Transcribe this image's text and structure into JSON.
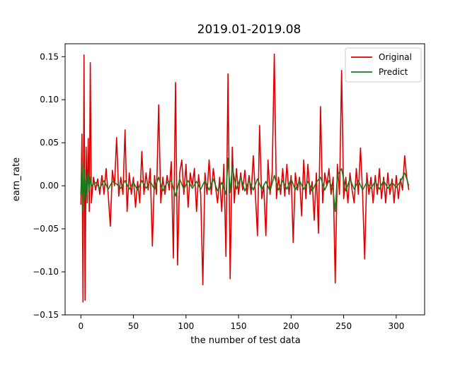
{
  "chart_data": {
    "type": "line",
    "title": "2019.01-2019.08",
    "xlabel": "the number of test data",
    "ylabel": "earn_rate",
    "xlim": [
      -15,
      327
    ],
    "ylim": [
      -0.15,
      0.165
    ],
    "xticks": [
      0,
      50,
      100,
      150,
      200,
      250,
      300
    ],
    "xtick_labels": [
      "0",
      "50",
      "100",
      "150",
      "200",
      "250",
      "300"
    ],
    "yticks": [
      -0.15,
      -0.1,
      -0.05,
      0.0,
      0.05,
      0.1,
      0.15
    ],
    "ytick_labels": [
      "−0.15",
      "−0.10",
      "−0.05",
      "0.00",
      "0.05",
      "0.10",
      "0.15"
    ],
    "grid": false,
    "legend_position": "top-right",
    "series": [
      {
        "name": "Original",
        "color": "#dd0000",
        "points": [
          [
            0,
            -0.022
          ],
          [
            1,
            0.06
          ],
          [
            2,
            -0.135
          ],
          [
            3,
            0.152
          ],
          [
            4,
            -0.133
          ],
          [
            5,
            0.045
          ],
          [
            6,
            -0.02
          ],
          [
            7,
            0.055
          ],
          [
            8,
            -0.03
          ],
          [
            9,
            0.143
          ],
          [
            10,
            -0.02
          ],
          [
            12,
            0.01
          ],
          [
            14,
            -0.005
          ],
          [
            16,
            0.008
          ],
          [
            18,
            -0.01
          ],
          [
            20,
            0.012
          ],
          [
            22,
            -0.01
          ],
          [
            24,
            0.02
          ],
          [
            26,
            -0.01
          ],
          [
            28,
            -0.047
          ],
          [
            30,
            0.018
          ],
          [
            32,
            0.0
          ],
          [
            34,
            0.056
          ],
          [
            36,
            -0.012
          ],
          [
            38,
            0.01
          ],
          [
            40,
            -0.01
          ],
          [
            42,
            0.065
          ],
          [
            44,
            -0.03
          ],
          [
            46,
            0.015
          ],
          [
            48,
            -0.01
          ],
          [
            50,
            0.01
          ],
          [
            52,
            -0.025
          ],
          [
            54,
            0.005
          ],
          [
            56,
            -0.02
          ],
          [
            58,
            0.04
          ],
          [
            60,
            -0.01
          ],
          [
            62,
            0.015
          ],
          [
            64,
            -0.005
          ],
          [
            66,
            0.02
          ],
          [
            68,
            -0.07
          ],
          [
            70,
            0.012
          ],
          [
            72,
            -0.01
          ],
          [
            74,
            0.094
          ],
          [
            76,
            -0.02
          ],
          [
            78,
            0.01
          ],
          [
            80,
            -0.01
          ],
          [
            82,
            0.012
          ],
          [
            84,
            -0.005
          ],
          [
            86,
            0.028
          ],
          [
            88,
            -0.084
          ],
          [
            90,
            0.12
          ],
          [
            92,
            -0.092
          ],
          [
            94,
            0.015
          ],
          [
            96,
            0.03
          ],
          [
            98,
            -0.01
          ],
          [
            100,
            0.025
          ],
          [
            102,
            -0.025
          ],
          [
            104,
            0.015
          ],
          [
            106,
            0.0
          ],
          [
            108,
            0.02
          ],
          [
            110,
            -0.03
          ],
          [
            112,
            0.013
          ],
          [
            114,
            -0.01
          ],
          [
            116,
            -0.115
          ],
          [
            118,
            0.015
          ],
          [
            120,
            -0.01
          ],
          [
            122,
            0.03
          ],
          [
            124,
            -0.01
          ],
          [
            126,
            0.02
          ],
          [
            128,
            0.0
          ],
          [
            130,
            -0.02
          ],
          [
            132,
            0.01
          ],
          [
            134,
            -0.03
          ],
          [
            136,
            0.025
          ],
          [
            138,
            -0.082
          ],
          [
            140,
            0.13
          ],
          [
            142,
            -0.108
          ],
          [
            144,
            0.045
          ],
          [
            146,
            -0.02
          ],
          [
            148,
            0.02
          ],
          [
            150,
            -0.01
          ],
          [
            152,
            0.015
          ],
          [
            154,
            -0.005
          ],
          [
            156,
            0.018
          ],
          [
            158,
            -0.01
          ],
          [
            160,
            0.012
          ],
          [
            162,
            -0.01
          ],
          [
            164,
            0.035
          ],
          [
            166,
            -0.01
          ],
          [
            168,
            -0.058
          ],
          [
            170,
            0.07
          ],
          [
            172,
            -0.015
          ],
          [
            174,
            0.0
          ],
          [
            176,
            -0.058
          ],
          [
            178,
            0.03
          ],
          [
            180,
            -0.01
          ],
          [
            182,
            0.015
          ],
          [
            184,
            0.153
          ],
          [
            186,
            -0.015
          ],
          [
            188,
            0.01
          ],
          [
            190,
            -0.01
          ],
          [
            192,
            0.02
          ],
          [
            194,
            -0.012
          ],
          [
            196,
            0.025
          ],
          [
            198,
            -0.01
          ],
          [
            200,
            0.012
          ],
          [
            202,
            -0.066
          ],
          [
            204,
            0.015
          ],
          [
            206,
            -0.005
          ],
          [
            208,
            0.01
          ],
          [
            210,
            -0.035
          ],
          [
            212,
            0.03
          ],
          [
            214,
            -0.015
          ],
          [
            216,
            0.025
          ],
          [
            218,
            -0.01
          ],
          [
            220,
            0.005
          ],
          [
            222,
            -0.04
          ],
          [
            224,
            0.015
          ],
          [
            226,
            -0.055
          ],
          [
            228,
            0.092
          ],
          [
            230,
            -0.02
          ],
          [
            232,
            0.015
          ],
          [
            234,
            0.0
          ],
          [
            236,
            0.02
          ],
          [
            238,
            -0.01
          ],
          [
            240,
            0.01
          ],
          [
            242,
            -0.113
          ],
          [
            244,
            0.025
          ],
          [
            246,
            -0.01
          ],
          [
            248,
            0.134
          ],
          [
            250,
            -0.015
          ],
          [
            252,
            0.01
          ],
          [
            254,
            -0.02
          ],
          [
            256,
            0.015
          ],
          [
            258,
            -0.005
          ],
          [
            260,
            -0.02
          ],
          [
            262,
            0.02
          ],
          [
            264,
            -0.01
          ],
          [
            266,
            0.044
          ],
          [
            268,
            -0.01
          ],
          [
            270,
            -0.085
          ],
          [
            272,
            0.015
          ],
          [
            274,
            -0.01
          ],
          [
            276,
            0.01
          ],
          [
            278,
            -0.02
          ],
          [
            280,
            0.012
          ],
          [
            282,
            -0.01
          ],
          [
            284,
            0.02
          ],
          [
            286,
            -0.015
          ],
          [
            288,
            0.01
          ],
          [
            290,
            -0.02
          ],
          [
            292,
            0.015
          ],
          [
            294,
            -0.01
          ],
          [
            296,
            0.008
          ],
          [
            298,
            -0.02
          ],
          [
            300,
            0.012
          ],
          [
            302,
            -0.015
          ],
          [
            304,
            0.008
          ],
          [
            306,
            -0.005
          ],
          [
            308,
            0.035
          ],
          [
            310,
            0.01
          ],
          [
            312,
            -0.005
          ]
        ]
      },
      {
        "name": "Predict",
        "color": "#1a7a1a",
        "points": [
          [
            0,
            -0.01
          ],
          [
            1,
            0.028
          ],
          [
            2,
            -0.03
          ],
          [
            3,
            0.02
          ],
          [
            4,
            -0.015
          ],
          [
            5,
            0.012
          ],
          [
            6,
            -0.01
          ],
          [
            7,
            0.016
          ],
          [
            8,
            -0.005
          ],
          [
            9,
            0.01
          ],
          [
            10,
            0.0
          ],
          [
            14,
            0.004
          ],
          [
            18,
            -0.003
          ],
          [
            22,
            0.006
          ],
          [
            26,
            -0.004
          ],
          [
            30,
            0.005
          ],
          [
            34,
            0.002
          ],
          [
            38,
            -0.003
          ],
          [
            42,
            0.006
          ],
          [
            46,
            -0.004
          ],
          [
            50,
            0.004
          ],
          [
            54,
            -0.005
          ],
          [
            58,
            0.006
          ],
          [
            62,
            -0.003
          ],
          [
            66,
            0.005
          ],
          [
            70,
            -0.004
          ],
          [
            74,
            0.01
          ],
          [
            78,
            -0.006
          ],
          [
            82,
            0.004
          ],
          [
            86,
            0.006
          ],
          [
            90,
            -0.012
          ],
          [
            94,
            0.008
          ],
          [
            98,
            -0.004
          ],
          [
            102,
            0.006
          ],
          [
            106,
            -0.003
          ],
          [
            110,
            0.005
          ],
          [
            114,
            -0.004
          ],
          [
            118,
            0.006
          ],
          [
            122,
            -0.005
          ],
          [
            126,
            0.008
          ],
          [
            130,
            -0.006
          ],
          [
            134,
            0.004
          ],
          [
            138,
            -0.01
          ],
          [
            140,
            0.032
          ],
          [
            142,
            -0.008
          ],
          [
            144,
            0.022
          ],
          [
            148,
            -0.004
          ],
          [
            152,
            0.01
          ],
          [
            156,
            -0.006
          ],
          [
            160,
            0.006
          ],
          [
            164,
            -0.005
          ],
          [
            168,
            0.008
          ],
          [
            172,
            -0.004
          ],
          [
            176,
            0.005
          ],
          [
            180,
            -0.006
          ],
          [
            184,
            0.012
          ],
          [
            188,
            -0.005
          ],
          [
            192,
            0.006
          ],
          [
            196,
            -0.004
          ],
          [
            200,
            0.008
          ],
          [
            204,
            -0.005
          ],
          [
            208,
            0.006
          ],
          [
            212,
            -0.004
          ],
          [
            216,
            0.005
          ],
          [
            220,
            -0.006
          ],
          [
            224,
            0.004
          ],
          [
            228,
            0.01
          ],
          [
            232,
            -0.005
          ],
          [
            236,
            0.006
          ],
          [
            240,
            -0.005
          ],
          [
            242,
            -0.03
          ],
          [
            244,
            0.012
          ],
          [
            248,
            0.02
          ],
          [
            252,
            -0.006
          ],
          [
            256,
            0.008
          ],
          [
            260,
            -0.004
          ],
          [
            264,
            0.006
          ],
          [
            268,
            -0.005
          ],
          [
            272,
            0.004
          ],
          [
            276,
            -0.003
          ],
          [
            280,
            0.005
          ],
          [
            284,
            -0.004
          ],
          [
            288,
            0.006
          ],
          [
            292,
            -0.003
          ],
          [
            296,
            0.004
          ],
          [
            300,
            -0.002
          ],
          [
            304,
            0.005
          ],
          [
            308,
            0.015
          ],
          [
            310,
            0.008
          ],
          [
            312,
            0.0
          ]
        ]
      }
    ]
  }
}
